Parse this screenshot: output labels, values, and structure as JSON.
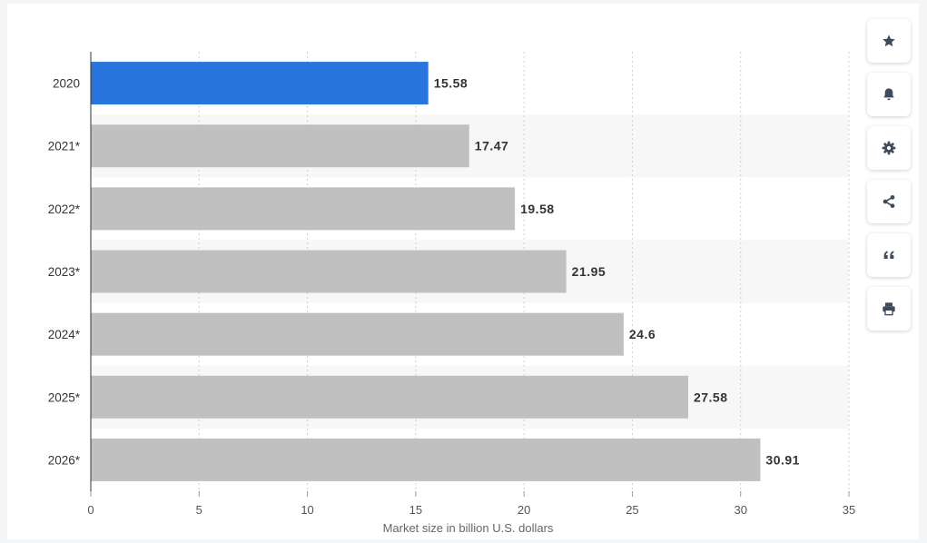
{
  "chart_data": {
    "type": "bar",
    "orientation": "horizontal",
    "categories": [
      "2020",
      "2021*",
      "2022*",
      "2023*",
      "2024*",
      "2025*",
      "2026*"
    ],
    "values": [
      15.58,
      17.47,
      19.58,
      21.95,
      24.6,
      27.58,
      30.91
    ],
    "value_labels": [
      "15.58",
      "17.47",
      "19.58",
      "21.95",
      "24.6",
      "27.58",
      "30.91"
    ],
    "xlabel": "Market size in billion U.S. dollars",
    "ylabel": "",
    "xlim": [
      0,
      35
    ],
    "xticks": [
      "0",
      "5",
      "10",
      "15",
      "20",
      "25",
      "30",
      "35"
    ],
    "grid": "vertical dotted",
    "colors": {
      "highlight": "#2876dd",
      "bar": "#c0c0c0",
      "band": "#f7f7f7"
    },
    "highlight_index": 0
  },
  "toolbar": [
    {
      "name": "favorite-button",
      "icon": "star-icon"
    },
    {
      "name": "notification-button",
      "icon": "bell-icon"
    },
    {
      "name": "settings-button",
      "icon": "gear-icon"
    },
    {
      "name": "share-button",
      "icon": "share-icon"
    },
    {
      "name": "cite-button",
      "icon": "quote-icon"
    },
    {
      "name": "print-button",
      "icon": "print-icon"
    }
  ]
}
